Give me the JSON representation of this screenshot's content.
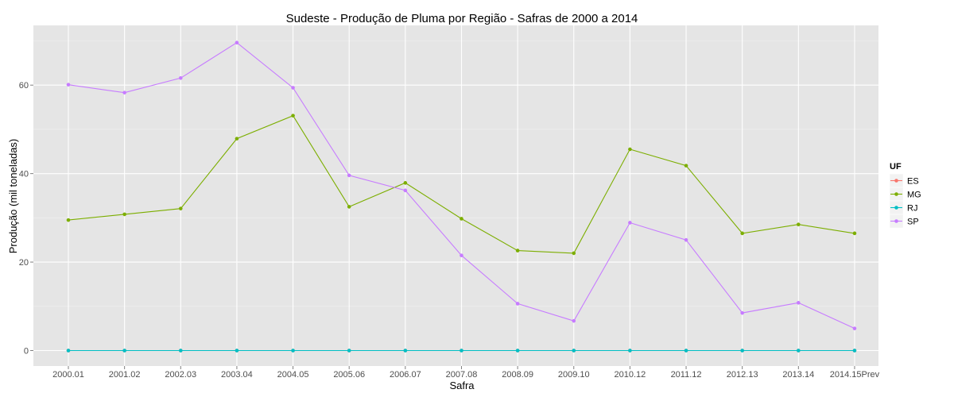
{
  "chart_data": {
    "type": "line",
    "title": "Sudeste  - Produção de Pluma por Região - Safras de 2000 a 2014",
    "xlabel": "Safra",
    "ylabel": "Produção (mil toneladas)",
    "categories": [
      "2000.01",
      "2001.02",
      "2002.03",
      "2003.04",
      "2004.05",
      "2005.06",
      "2006.07",
      "2007.08",
      "2008.09",
      "2009.10",
      "2010.12",
      "2011.12",
      "2012.13",
      "2013.14",
      "2014.15Prev"
    ],
    "ylim": [
      -3.5,
      73.5
    ],
    "yticks": [
      0,
      20,
      40,
      60
    ],
    "grid": true,
    "legend": {
      "title": "UF",
      "position": "right"
    },
    "series": [
      {
        "name": "ES",
        "color": "#F8766D",
        "values": [
          0,
          0,
          0,
          0,
          0,
          0,
          0,
          0,
          0,
          0,
          0,
          0,
          0,
          0,
          0
        ]
      },
      {
        "name": "MG",
        "color": "#7CAE00",
        "values": [
          29.5,
          30.8,
          32.1,
          47.9,
          53.1,
          32.5,
          37.9,
          29.8,
          22.6,
          22.0,
          45.5,
          41.8,
          26.5,
          28.5,
          26.5
        ]
      },
      {
        "name": "RJ",
        "color": "#00BFC4",
        "values": [
          0,
          0,
          0,
          0,
          0,
          0,
          0,
          0,
          0,
          0,
          0,
          0,
          0,
          0,
          0
        ]
      },
      {
        "name": "SP",
        "color": "#C77CFF",
        "values": [
          60.1,
          58.3,
          61.6,
          69.6,
          59.4,
          39.6,
          36.2,
          21.5,
          10.6,
          6.7,
          28.9,
          25.0,
          8.5,
          10.8,
          5.0
        ]
      }
    ]
  }
}
